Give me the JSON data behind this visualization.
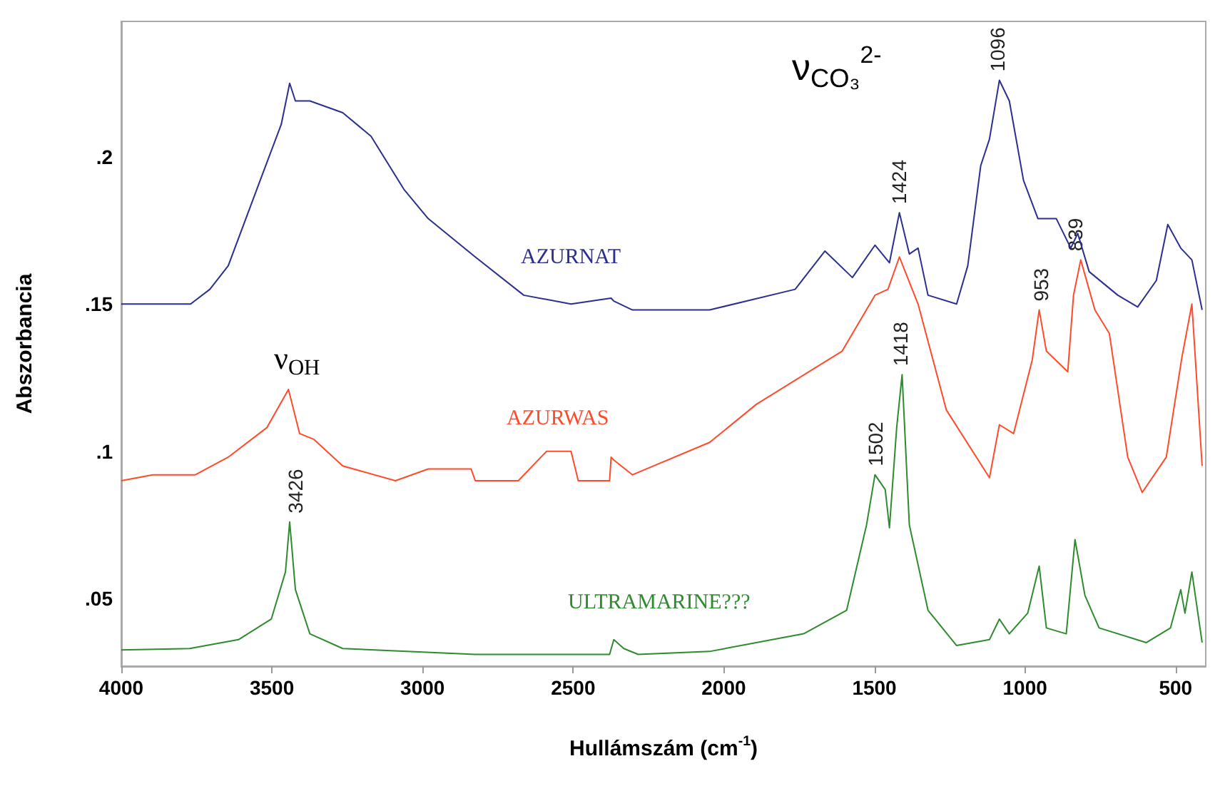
{
  "chart_data": {
    "type": "line",
    "xlabel": "Hullámszám (cm$^{-1}$)",
    "ylabel": "Abszorbancia",
    "xlim": [
      4000,
      400
    ],
    "xticks": [
      4000,
      3500,
      3000,
      2500,
      2000,
      1500,
      1000,
      500
    ],
    "ylim": [
      0.027,
      0.246
    ],
    "yticks": [
      {
        "value": 0.05,
        "label": ".05"
      },
      {
        "value": 0.1,
        "label": ".1"
      },
      {
        "value": 0.15,
        "label": ".15"
      },
      {
        "value": 0.2,
        "label": ".2"
      }
    ],
    "grid": false,
    "series": [
      {
        "name": "AZURNAT",
        "color": "#2b2f8f",
        "x": [
          4000,
          3770,
          3706,
          3645,
          3550,
          3469,
          3441,
          3422,
          3374,
          3265,
          3171,
          3062,
          2981,
          2825,
          2664,
          2507,
          2374,
          2365,
          2303,
          2047,
          1763,
          1664,
          1573,
          1498,
          1450,
          1417,
          1384,
          1355,
          1322,
          1227,
          1190,
          1147,
          1118,
          1085,
          1052,
          1005,
          957,
          896,
          848,
          825,
          787,
          692,
          626,
          564,
          526,
          483,
          446,
          412
        ],
        "values": [
          0.15,
          0.15,
          0.155,
          0.163,
          0.189,
          0.211,
          0.225,
          0.219,
          0.219,
          0.215,
          0.207,
          0.189,
          0.179,
          0.166,
          0.153,
          0.15,
          0.152,
          0.151,
          0.148,
          0.148,
          0.155,
          0.168,
          0.159,
          0.17,
          0.164,
          0.181,
          0.167,
          0.169,
          0.153,
          0.15,
          0.163,
          0.197,
          0.206,
          0.226,
          0.219,
          0.192,
          0.179,
          0.179,
          0.169,
          0.174,
          0.161,
          0.153,
          0.149,
          0.158,
          0.177,
          0.169,
          0.165,
          0.148
        ]
      },
      {
        "name": "AZURWAS",
        "color": "#ff4b2b",
        "x": [
          4000,
          3896,
          3754,
          3645,
          3517,
          3445,
          3408,
          3360,
          3265,
          3090,
          2981,
          2839,
          2825,
          2682,
          2588,
          2507,
          2483,
          2379,
          2374,
          2365,
          2303,
          2047,
          1891,
          1607,
          1498,
          1455,
          1417,
          1355,
          1261,
          1118,
          1085,
          1038,
          976,
          953,
          929,
          858,
          839,
          815,
          768,
          720,
          659,
          611,
          531,
          479,
          446,
          412
        ],
        "values": [
          0.09,
          0.092,
          0.092,
          0.098,
          0.108,
          0.121,
          0.106,
          0.104,
          0.095,
          0.09,
          0.094,
          0.094,
          0.09,
          0.09,
          0.1,
          0.1,
          0.09,
          0.09,
          0.098,
          0.097,
          0.092,
          0.103,
          0.116,
          0.134,
          0.153,
          0.155,
          0.166,
          0.15,
          0.114,
          0.091,
          0.109,
          0.106,
          0.131,
          0.148,
          0.134,
          0.127,
          0.153,
          0.165,
          0.148,
          0.14,
          0.098,
          0.086,
          0.098,
          0.132,
          0.15,
          0.095
        ]
      },
      {
        "name": "ULTRAMARINE???",
        "color": "#2e8b2e",
        "x": [
          4000,
          3773,
          3611,
          3502,
          3455,
          3441,
          3422,
          3374,
          3265,
          2825,
          2379,
          2365,
          2332,
          2284,
          2047,
          1735,
          1592,
          1526,
          1498,
          1464,
          1450,
          1426,
          1408,
          1384,
          1322,
          1227,
          1118,
          1085,
          1052,
          991,
          953,
          929,
          863,
          834,
          801,
          754,
          597,
          517,
          483,
          469,
          446,
          412
        ],
        "values": [
          0.0325,
          0.033,
          0.036,
          0.043,
          0.059,
          0.076,
          0.053,
          0.038,
          0.033,
          0.031,
          0.031,
          0.036,
          0.033,
          0.031,
          0.032,
          0.038,
          0.046,
          0.075,
          0.092,
          0.087,
          0.074,
          0.108,
          0.126,
          0.075,
          0.046,
          0.034,
          0.036,
          0.043,
          0.038,
          0.045,
          0.061,
          0.04,
          0.038,
          0.07,
          0.051,
          0.04,
          0.035,
          0.04,
          0.053,
          0.045,
          0.059,
          0.035
        ]
      }
    ],
    "annotations": [
      "ν$_{OH}$",
      "ν$_{CO₃}$$^{2-}$",
      {
        "text": "3426",
        "x": 3426,
        "y": 0.076
      },
      {
        "text": "1502",
        "x": 1502,
        "y": 0.092
      },
      {
        "text": "1418",
        "x": 1418,
        "y": 0.126
      },
      {
        "text": "1424",
        "x": 1424,
        "y": 0.181
      },
      {
        "text": "1096",
        "x": 1096,
        "y": 0.226
      },
      {
        "text": "953",
        "x": 953,
        "y": 0.148
      },
      {
        "text": "839",
        "x": 839,
        "y": 0.165
      }
    ]
  }
}
